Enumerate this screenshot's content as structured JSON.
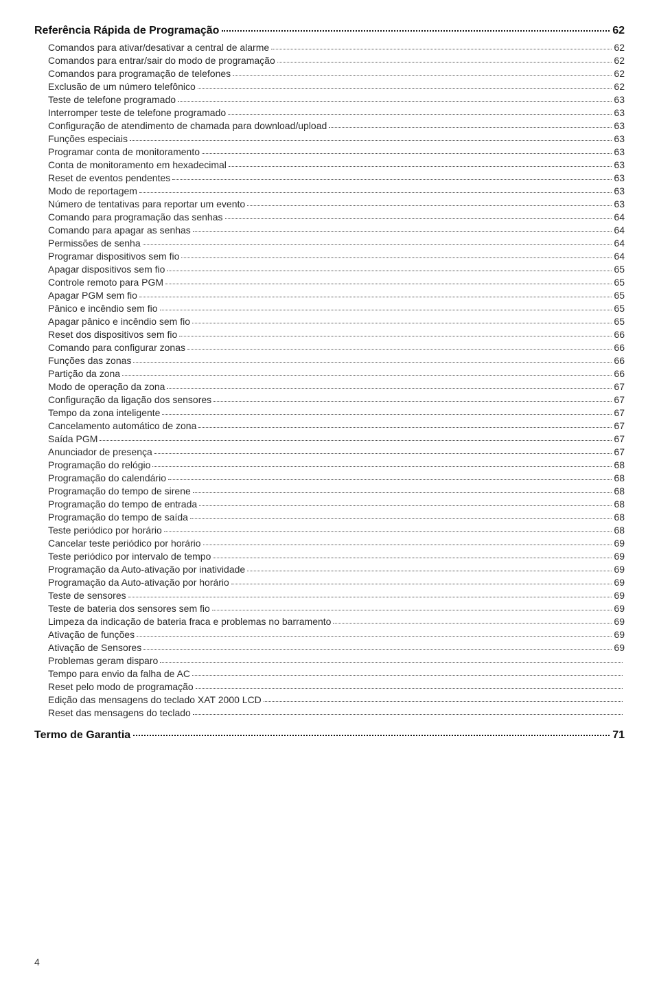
{
  "page_number": "4",
  "headings": {
    "quickref": {
      "label": "Referência Rápida de Programação",
      "page": "62"
    },
    "garantia": {
      "label": "Termo de Garantia",
      "page": "71"
    }
  },
  "entries": [
    {
      "label": "Comandos para ativar/desativar a central de alarme",
      "page": "62"
    },
    {
      "label": "Comandos para entrar/sair do modo de programação",
      "page": "62"
    },
    {
      "label": "Comandos para programação de telefones",
      "page": "62"
    },
    {
      "label": "Exclusão de um número telefônico",
      "page": "62"
    },
    {
      "label": "Teste de telefone programado",
      "page": "63"
    },
    {
      "label": "Interromper teste de telefone programado",
      "page": "63"
    },
    {
      "label": "Configuração de atendimento de chamada para download/upload",
      "page": "63"
    },
    {
      "label": "Funções especiais",
      "page": "63"
    },
    {
      "label": "Programar conta de monitoramento",
      "page": "63"
    },
    {
      "label": "Conta de monitoramento em hexadecimal",
      "page": "63"
    },
    {
      "label": "Reset de eventos pendentes",
      "page": "63"
    },
    {
      "label": "Modo de reportagem",
      "page": "63"
    },
    {
      "label": "Número de tentativas para reportar um evento",
      "page": "63"
    },
    {
      "label": "Comando para programação das senhas",
      "page": "64"
    },
    {
      "label": "Comando para apagar as senhas",
      "page": "64"
    },
    {
      "label": "Permissões de senha",
      "page": "64"
    },
    {
      "label": "Programar dispositivos sem fio",
      "page": "64"
    },
    {
      "label": "Apagar dispositivos sem fio",
      "page": "65"
    },
    {
      "label": "Controle remoto para PGM",
      "page": "65"
    },
    {
      "label": "Apagar PGM sem fio",
      "page": "65"
    },
    {
      "label": "Pânico e incêndio sem fio",
      "page": "65"
    },
    {
      "label": "Apagar pânico e incêndio sem fio",
      "page": "65"
    },
    {
      "label": "Reset dos dispositivos sem fio",
      "page": "66"
    },
    {
      "label": "Comando para configurar zonas",
      "page": "66"
    },
    {
      "label": "Funções das zonas",
      "page": "66"
    },
    {
      "label": "Partição da zona",
      "page": "66"
    },
    {
      "label": "Modo de operação da zona",
      "page": "67"
    },
    {
      "label": "Configuração da ligação dos sensores",
      "page": "67"
    },
    {
      "label": "Tempo da zona inteligente",
      "page": "67"
    },
    {
      "label": "Cancelamento automático de zona",
      "page": "67"
    },
    {
      "label": "Saída PGM",
      "page": "67"
    },
    {
      "label": "Anunciador de presença",
      "page": "67"
    },
    {
      "label": "Programação do relógio",
      "page": "68"
    },
    {
      "label": "Programação do calendário",
      "page": "68"
    },
    {
      "label": "Programação do tempo de sirene",
      "page": "68"
    },
    {
      "label": "Programação do tempo de entrada",
      "page": "68"
    },
    {
      "label": "Programação do tempo de saída",
      "page": "68"
    },
    {
      "label": "Teste periódico por horário",
      "page": "68"
    },
    {
      "label": "Cancelar teste periódico por horário",
      "page": "69"
    },
    {
      "label": "Teste periódico por intervalo de tempo",
      "page": "69"
    },
    {
      "label": "Programação da Auto-ativação por inatividade",
      "page": "69"
    },
    {
      "label": "Programação da Auto-ativação por horário",
      "page": "69"
    },
    {
      "label": "Teste de sensores",
      "page": "69"
    },
    {
      "label": "Teste de bateria dos sensores sem fio",
      "page": "69"
    },
    {
      "label": "Limpeza da indicação de bateria fraca e problemas no barramento",
      "page": "69"
    },
    {
      "label": "Ativação de funções",
      "page": "69"
    },
    {
      "label": "Ativação de Sensores",
      "page": "69"
    },
    {
      "label": "Problemas geram disparo",
      "page": ""
    },
    {
      "label": "Tempo para envio da falha de AC",
      "page": ""
    },
    {
      "label": "Reset pelo modo de programação",
      "page": ""
    },
    {
      "label": "Edição das mensagens do teclado XAT 2000 LCD",
      "page": ""
    },
    {
      "label": "Reset das mensagens do teclado",
      "page": ""
    }
  ]
}
